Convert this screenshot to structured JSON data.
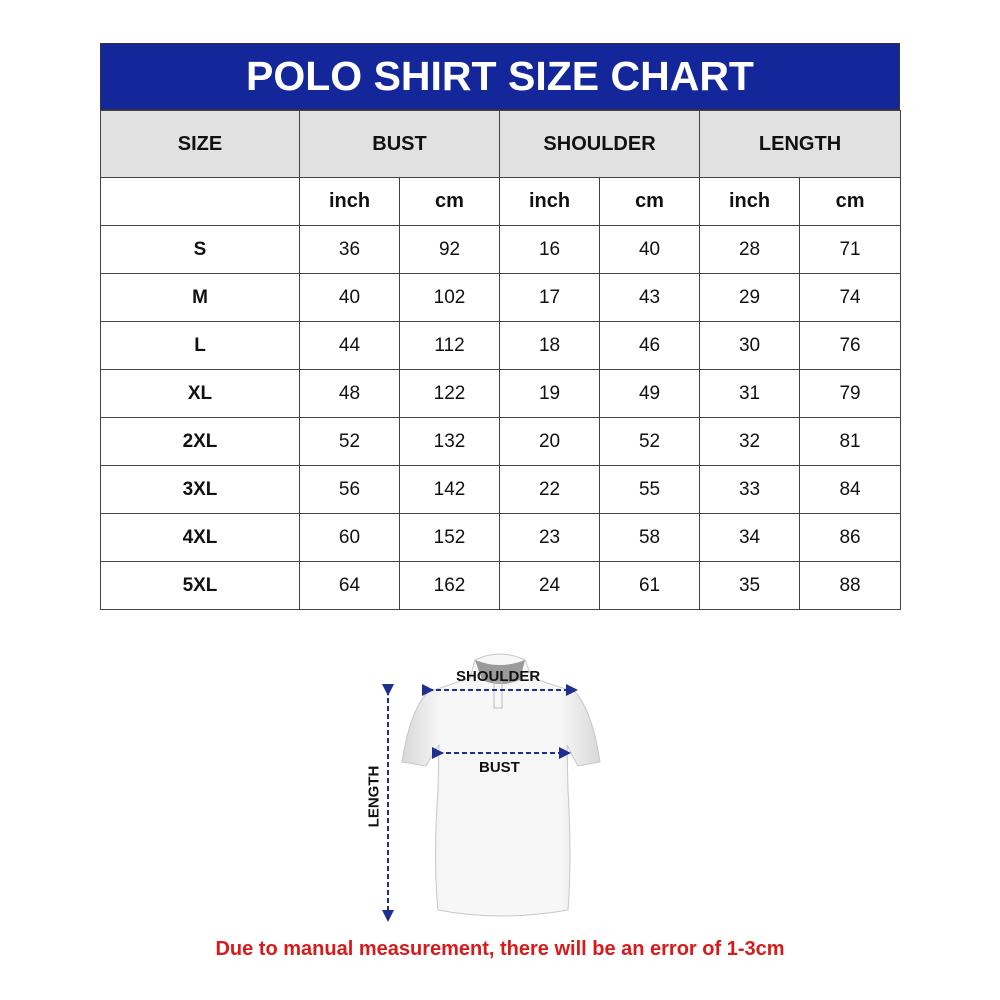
{
  "title": "POLO SHIRT SIZE CHART",
  "colors": {
    "header_bg": "#13279a",
    "subheader_bg": "#e1e1e1",
    "note": "#d81a1a",
    "arrows": "#1e2f8f"
  },
  "columns": [
    "SIZE",
    "BUST",
    "SHOULDER",
    "LENGTH"
  ],
  "units": [
    "inch",
    "cm",
    "inch",
    "cm",
    "inch",
    "cm"
  ],
  "rows": [
    [
      "S",
      "36",
      "92",
      "16",
      "40",
      "28",
      "71"
    ],
    [
      "M",
      "40",
      "102",
      "17",
      "43",
      "29",
      "74"
    ],
    [
      "L",
      "44",
      "112",
      "18",
      "46",
      "30",
      "76"
    ],
    [
      "XL",
      "48",
      "122",
      "19",
      "49",
      "31",
      "79"
    ],
    [
      "2XL",
      "52",
      "132",
      "20",
      "52",
      "32",
      "81"
    ],
    [
      "3XL",
      "56",
      "142",
      "22",
      "55",
      "33",
      "84"
    ],
    [
      "4XL",
      "60",
      "152",
      "23",
      "58",
      "34",
      "86"
    ],
    [
      "5XL",
      "64",
      "162",
      "24",
      "61",
      "35",
      "88"
    ]
  ],
  "diagram": {
    "shoulder": "SHOULDER",
    "bust": "BUST",
    "length": "LENGTH"
  },
  "note": "Due to manual measurement, there will be an error of 1-3cm"
}
